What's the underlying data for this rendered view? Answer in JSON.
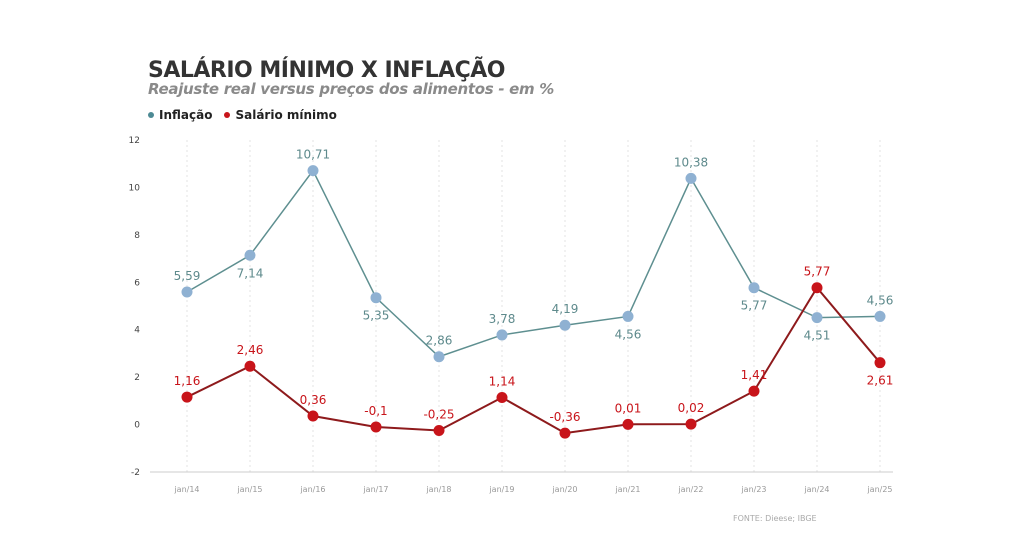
{
  "chart_data": {
    "type": "line",
    "title": "SALÁRIO MÍNIMO X INFLAÇÃO",
    "subtitle": "Reajuste real versus preços dos alimentos - em %",
    "categories": [
      "jan/14",
      "jan/15",
      "jan/16",
      "jan/17",
      "jan/18",
      "jan/19",
      "jan/20",
      "jan/21",
      "jan/22",
      "jan/23",
      "jan/24",
      "jan/25"
    ],
    "series": [
      {
        "name": "Inflação",
        "color": "#8fb1d2",
        "line_color": "#5e8f90",
        "label_color": "#5e8a8c",
        "values": [
          5.59,
          7.14,
          10.71,
          5.35,
          2.86,
          3.78,
          4.19,
          4.56,
          10.38,
          5.77,
          4.51,
          4.56
        ],
        "labels": [
          "5,59",
          "7,14",
          "10,71",
          "5,35",
          "2,86",
          "3,78",
          "4,19",
          "4,56",
          "10,38",
          "5,77",
          "4,51",
          "4,56"
        ]
      },
      {
        "name": "Salário mínimo",
        "color": "#c8141a",
        "line_color": "#8e1a1c",
        "label_color": "#c8141a",
        "values": [
          1.16,
          2.46,
          0.36,
          -0.1,
          -0.25,
          1.14,
          -0.36,
          0.01,
          0.02,
          1.41,
          5.77,
          2.61
        ],
        "labels": [
          "1,16",
          "2,46",
          "0,36",
          "-0,1",
          "-0,25",
          "1,14",
          "-0,36",
          "0,01",
          "0,02",
          "1,41",
          "5,77",
          "2,61"
        ]
      }
    ],
    "yticks": [
      "12",
      "10",
      "8",
      "6",
      "4",
      "2",
      "0",
      "-2"
    ],
    "ylim": [
      -2,
      12
    ],
    "grid": "vertical dashed",
    "legend": "top-left",
    "source": "FONTE: Dieese; IBGE"
  }
}
